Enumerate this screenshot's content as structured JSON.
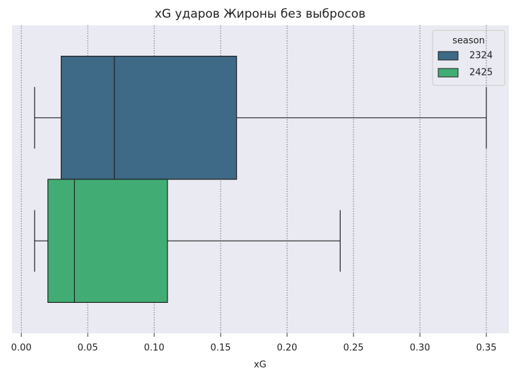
{
  "chart_data": {
    "type": "box",
    "title": "xG ударов Жироны без выбросов",
    "x_label": "xG",
    "orientation": "horizontal",
    "series": [
      {
        "name": "2324",
        "color": "#3e6987",
        "min": 0.01,
        "q1": 0.03,
        "median": 0.07,
        "q3": 0.162,
        "max": 0.35
      },
      {
        "name": "2425",
        "color": "#41ad74",
        "min": 0.01,
        "q1": 0.02,
        "median": 0.04,
        "q3": 0.11,
        "max": 0.24
      }
    ],
    "xlim": [
      -0.007,
      0.367
    ],
    "xticks": [
      {
        "value": 0,
        "label": "0.00"
      },
      0.05,
      {
        "value": 0.1,
        "label": "0.10"
      },
      0.15,
      {
        "value": 0.2,
        "label": "0.20"
      },
      0.25,
      {
        "value": 0.3,
        "label": "0.30"
      },
      0.35
    ],
    "grid": true,
    "legend": {
      "title": "season",
      "position": "upper right"
    }
  }
}
